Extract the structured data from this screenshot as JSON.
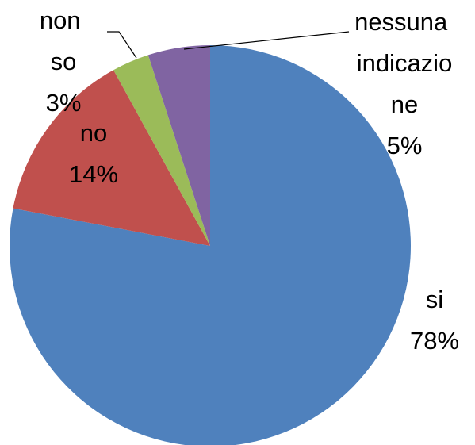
{
  "chart_data": {
    "type": "pie",
    "categories": [
      "si",
      "no",
      "non so",
      "nessuna indicazione"
    ],
    "values": [
      78,
      14,
      3,
      5
    ],
    "value_labels": [
      "78%",
      "14%",
      "3%",
      "5%"
    ],
    "colors": [
      "#4f81bd",
      "#c0504d",
      "#9bbb59",
      "#8064a2"
    ]
  }
}
